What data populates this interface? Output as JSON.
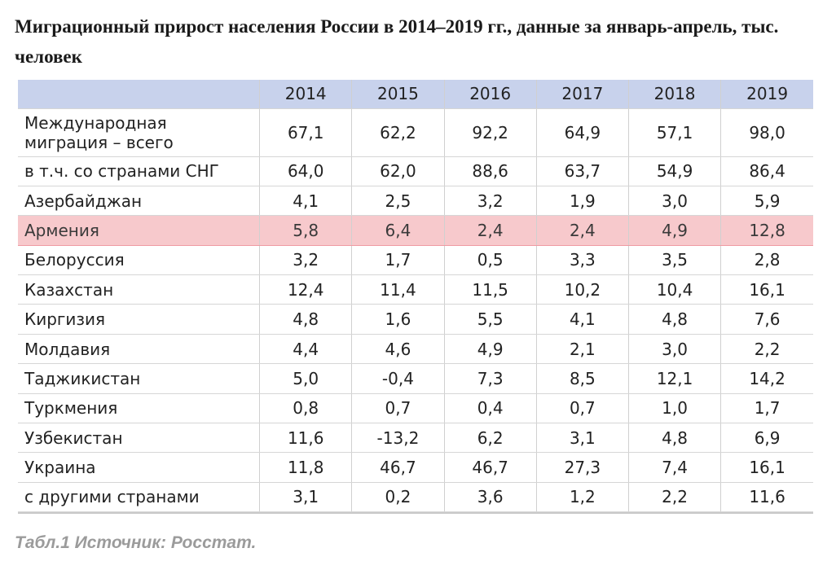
{
  "page": {
    "title": "Миграционный прирост населения России в 2014–2019 гг., данные за январь-апрель, тыс. человек",
    "source": "Табл.1 Источник: Росстат."
  },
  "chart_data": {
    "type": "table",
    "title": "Миграционный прирост населения России в 2014–2019 гг., данные за январь-апрель, тыс. человек",
    "columns": [
      "",
      "2014",
      "2015",
      "2016",
      "2017",
      "2018",
      "2019"
    ],
    "rows": [
      {
        "label": "Международная миграция – всего",
        "values": [
          "67,1",
          "62,2",
          "92,2",
          "64,9",
          "57,1",
          "98,0"
        ],
        "highlight": false
      },
      {
        "label": "в т.ч. со странами СНГ",
        "values": [
          "64,0",
          "62,0",
          "88,6",
          "63,7",
          "54,9",
          "86,4"
        ],
        "highlight": false
      },
      {
        "label": "Азербайджан",
        "values": [
          "4,1",
          "2,5",
          "3,2",
          "1,9",
          "3,0",
          "5,9"
        ],
        "highlight": false
      },
      {
        "label": "Армения",
        "values": [
          "5,8",
          "6,4",
          "2,4",
          "2,4",
          "4,9",
          "12,8"
        ],
        "highlight": true
      },
      {
        "label": "Белоруссия",
        "values": [
          "3,2",
          "1,7",
          "0,5",
          "3,3",
          "3,5",
          "2,8"
        ],
        "highlight": false
      },
      {
        "label": "Казахстан",
        "values": [
          "12,4",
          "11,4",
          "11,5",
          "10,2",
          "10,4",
          "16,1"
        ],
        "highlight": false
      },
      {
        "label": "Киргизия",
        "values": [
          "4,8",
          "1,6",
          "5,5",
          "4,1",
          "4,8",
          "7,6"
        ],
        "highlight": false
      },
      {
        "label": "Молдавия",
        "values": [
          "4,4",
          "4,6",
          "4,9",
          "2,1",
          "3,0",
          "2,2"
        ],
        "highlight": false
      },
      {
        "label": "Таджикистан",
        "values": [
          "5,0",
          "-0,4",
          "7,3",
          "8,5",
          "12,1",
          "14,2"
        ],
        "highlight": false
      },
      {
        "label": "Туркмения",
        "values": [
          "0,8",
          "0,7",
          "0,4",
          "0,7",
          "1,0",
          "1,7"
        ],
        "highlight": false
      },
      {
        "label": "Узбекистан",
        "values": [
          "11,6",
          "-13,2",
          "6,2",
          "3,1",
          "4,8",
          "6,9"
        ],
        "highlight": false
      },
      {
        "label": "Украина",
        "values": [
          "11,8",
          "46,7",
          "46,7",
          "27,3",
          "7,4",
          "16,1"
        ],
        "highlight": false
      },
      {
        "label": "с другими странами",
        "values": [
          "3,1",
          "0,2",
          "3,6",
          "1,2",
          "2,2",
          "11,6"
        ],
        "highlight": false
      }
    ],
    "colors": {
      "header_bg": "#c8d2ec",
      "highlight_bg": "#f7c9cc",
      "highlight_border": "#ef9aa2"
    }
  }
}
